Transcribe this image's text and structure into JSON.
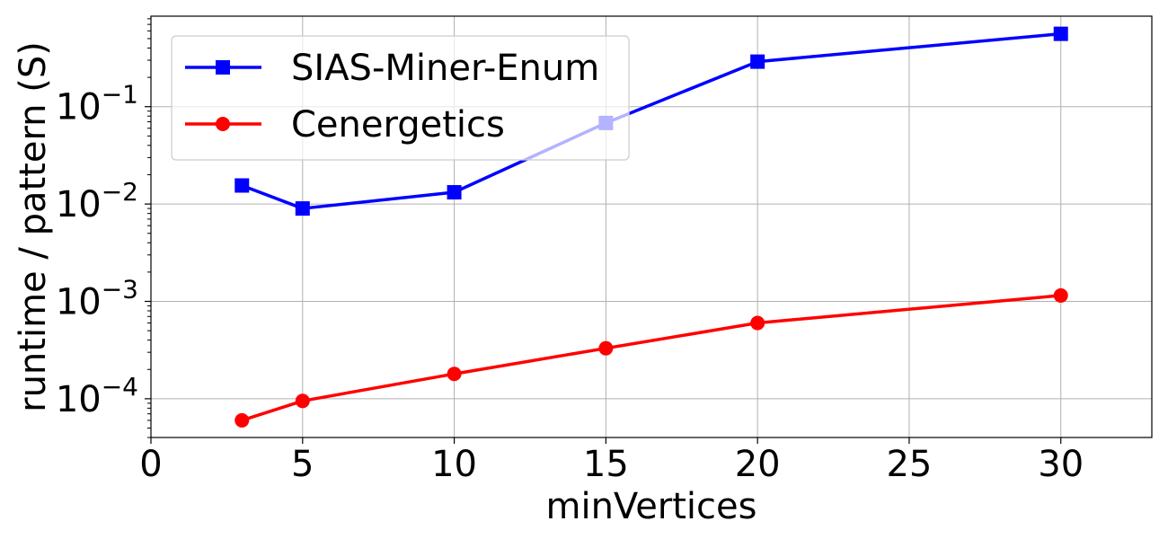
{
  "chart_data": {
    "type": "line",
    "title": "",
    "xlabel": "minVertices",
    "ylabel": "runtime / pattern (S)",
    "xscale": "linear",
    "yscale": "log",
    "xlim": [
      0,
      33
    ],
    "ylim": [
      4e-05,
      0.85
    ],
    "xticks": [
      0,
      5,
      10,
      15,
      20,
      25,
      30
    ],
    "yticks": [
      {
        "value": 0.0001,
        "base": "10",
        "exp": "−4"
      },
      {
        "value": 0.001,
        "base": "10",
        "exp": "−3"
      },
      {
        "value": 0.01,
        "base": "10",
        "exp": "−2"
      },
      {
        "value": 0.1,
        "base": "10",
        "exp": "−1"
      }
    ],
    "grid": true,
    "legend_position": "top-left",
    "series": [
      {
        "name": "SIAS-Miner-Enum",
        "color": "#0000ff",
        "marker": "square",
        "x": [
          3,
          5,
          10,
          15,
          20,
          30
        ],
        "y": [
          0.0155,
          0.009,
          0.0132,
          0.068,
          0.29,
          0.56
        ]
      },
      {
        "name": "Cenergetics",
        "color": "#ff0000",
        "marker": "circle",
        "x": [
          3,
          5,
          10,
          15,
          20,
          30
        ],
        "y": [
          6e-05,
          9.5e-05,
          0.00018,
          0.00033,
          0.0006,
          0.00115
        ]
      }
    ]
  }
}
